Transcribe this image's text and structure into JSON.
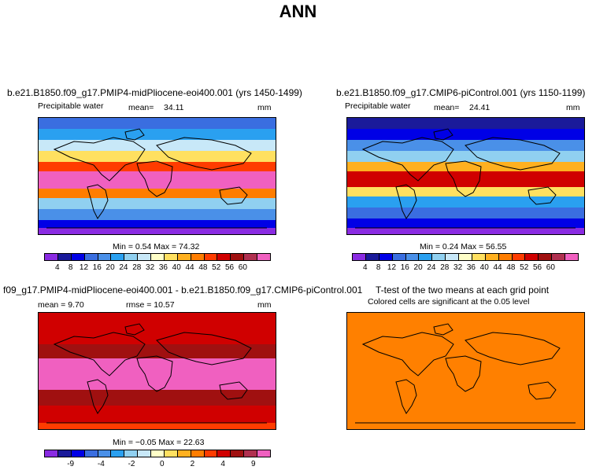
{
  "title": "ANN",
  "colors": {
    "wet_scale": [
      "#8a2be2",
      "#1a1a9a",
      "#0000e6",
      "#3a6ee0",
      "#4a90e8",
      "#2aa0f0",
      "#90d0f0",
      "#c8e8f8",
      "#ffffc8",
      "#ffe060",
      "#ffb020",
      "#ff7d00",
      "#ff3c00",
      "#d00000",
      "#a01010",
      "#b03050",
      "#f060c0"
    ],
    "diff_scale": [
      "#8a2be2",
      "#1a1a9a",
      "#0000e6",
      "#3a6ee0",
      "#4a90e8",
      "#2aa0f0",
      "#90d0f0",
      "#c8e8f8",
      "#ffffc8",
      "#ffe060",
      "#ffb020",
      "#ff7d00",
      "#ff3c00",
      "#d00000",
      "#a01010",
      "#b03050",
      "#f060c0"
    ],
    "ttest_fill": "#ff8000"
  },
  "panels": {
    "p1": {
      "title": "b.e21.B1850.f09_g17.PMIP4-midPliocene-eoi400.001 (yrs 1450-1499)",
      "left_label": "Precipitable water",
      "mean_label": "mean=",
      "mean_value": "34.11",
      "units": "mm",
      "minmax": "Min =    0.54  Max =  74.32"
    },
    "p2": {
      "title": "b.e21.B1850.f09_g17.CMIP6-piControl.001 (yrs 1150-1199)",
      "left_label": "Precipitable water",
      "mean_label": "mean=",
      "mean_value": "24.41",
      "units": "mm",
      "minmax": "Min =    0.24  Max =  56.55"
    },
    "p3": {
      "title": "f09_g17.PMIP4-midPliocene-eoi400.001 - b.e21.B1850.f09_g17.CMIP6-piControl.001",
      "left_label": "mean =     9.70",
      "rmse_label": "rmse =   10.57",
      "units": "mm",
      "minmax": "Min =   −0.05  Max =   22.63"
    },
    "p4": {
      "title": "T-test of the two means at each grid point",
      "subtitle": "Colored cells are significant at the 0.05 level"
    }
  },
  "chart_data": [
    {
      "type": "heatmap",
      "title": "b.e21.B1850.f09_g17.PMIP4-midPliocene-eoi400.001 (yrs 1450-1499)",
      "variable": "Precipitable water",
      "units": "mm",
      "mean": 34.11,
      "min": 0.54,
      "max": 74.32,
      "colorbar_levels": [
        4,
        8,
        12,
        16,
        20,
        24,
        28,
        32,
        36,
        40,
        44,
        48,
        52,
        56,
        60
      ]
    },
    {
      "type": "heatmap",
      "title": "b.e21.B1850.f09_g17.CMIP6-piControl.001 (yrs 1150-1199)",
      "variable": "Precipitable water",
      "units": "mm",
      "mean": 24.41,
      "min": 0.24,
      "max": 56.55,
      "colorbar_levels": [
        4,
        8,
        12,
        16,
        20,
        24,
        28,
        32,
        36,
        40,
        44,
        48,
        52,
        56,
        60
      ]
    },
    {
      "type": "heatmap",
      "title": "f09_g17.PMIP4-midPliocene-eoi400.001 - b.e21.B1850.f09_g17.CMIP6-piControl.001",
      "units": "mm",
      "mean": 9.7,
      "rmse": 10.57,
      "min": -0.05,
      "max": 22.63,
      "colorbar_labels": [
        "-9",
        "-4",
        "-2",
        "0",
        "2",
        "4",
        "9"
      ]
    },
    {
      "type": "heatmap",
      "title": "T-test of the two means at each grid point",
      "subtitle": "Colored cells are significant at the 0.05 level"
    }
  ],
  "colorbar_labels_abs": [
    "4",
    "8",
    "12",
    "16",
    "20",
    "24",
    "28",
    "32",
    "36",
    "40",
    "44",
    "48",
    "52",
    "56",
    "60"
  ],
  "colorbar_labels_diff": [
    "-9",
    "-4",
    "-2",
    "0",
    "2",
    "4",
    "9"
  ]
}
